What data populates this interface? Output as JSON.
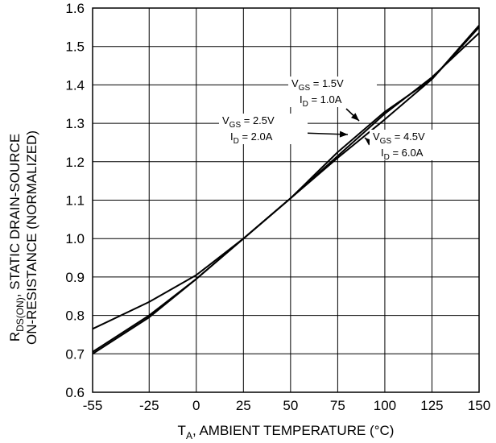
{
  "chart_data": {
    "type": "line",
    "xlabel_main": "T",
    "xlabel_sub": "A",
    "xlabel_rest": ", AMBIENT TEMPERATURE (°C)",
    "ylabel_line1_main": "R",
    "ylabel_line1_sub": "DS(ON)",
    "ylabel_line1_rest": ", STATIC DRAIN-SOURCE",
    "ylabel_line2": "ON-RESISTANCE (NORMALIZED)",
    "xlim": [
      -55,
      150
    ],
    "ylim": [
      0.6,
      1.6
    ],
    "x_ticks": [
      -55,
      -25,
      0,
      25,
      50,
      75,
      100,
      125,
      150
    ],
    "y_ticks": [
      0.6,
      0.7,
      0.8,
      0.9,
      1.0,
      1.1,
      1.2,
      1.3,
      1.4,
      1.5,
      1.6
    ],
    "x_tick_labels": [
      "-55",
      "-25",
      "0",
      "25",
      "50",
      "75",
      "100",
      "125",
      "150"
    ],
    "y_tick_labels": [
      "0.6",
      "0.7",
      "0.8",
      "0.9",
      "1.0",
      "1.1",
      "1.2",
      "1.3",
      "1.4",
      "1.5",
      "1.6"
    ],
    "grid": true,
    "series": [
      {
        "x": [
          -55,
          -25,
          0,
          25,
          50,
          75,
          100,
          125,
          150
        ],
        "y": [
          0.765,
          0.835,
          0.905,
          1.0,
          1.105,
          1.215,
          1.325,
          1.42,
          1.535
        ]
      },
      {
        "x": [
          -55,
          -25,
          0,
          25,
          50,
          75,
          100,
          125,
          150
        ],
        "y": [
          0.705,
          0.8,
          0.895,
          1.0,
          1.105,
          1.225,
          1.33,
          1.415,
          1.55
        ]
      },
      {
        "x": [
          -55,
          -25,
          0,
          25,
          50,
          75,
          100,
          125,
          150
        ],
        "y": [
          0.7,
          0.795,
          0.895,
          1.0,
          1.105,
          1.21,
          1.31,
          1.415,
          1.555
        ]
      }
    ],
    "annotations": [
      {
        "vgs_main": "V",
        "vgs_sub": "GS",
        "vgs_val": " = 1.5V",
        "id_main": "I",
        "id_sub": "D",
        "id_val": " = 1.0A"
      },
      {
        "vgs_main": "V",
        "vgs_sub": "GS",
        "vgs_val": " = 2.5V",
        "id_main": "I",
        "id_sub": "D",
        "id_val": " = 2.0A"
      },
      {
        "vgs_main": "V",
        "vgs_sub": "GS",
        "vgs_val": " = 4.5V",
        "id_main": "I",
        "id_sub": "D",
        "id_val": " = 6.0A"
      }
    ]
  }
}
